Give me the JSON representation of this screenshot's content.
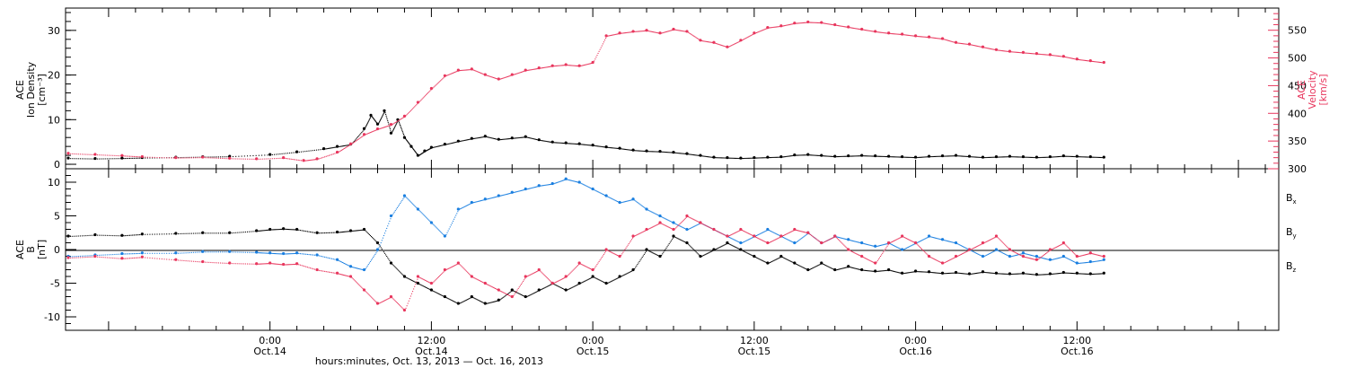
{
  "chart_data": [
    {
      "type": "scatter",
      "panel": "top",
      "ylabel_left": [
        "ACE",
        "Ion Density",
        "[cm⁻³]"
      ],
      "ylabel_right": [
        "ACE",
        "Velocity",
        "[km/s]"
      ],
      "left_axis": {
        "ylim": [
          -1,
          35
        ],
        "ticks": [
          0,
          10,
          20,
          30
        ]
      },
      "right_axis": {
        "ylim": [
          300,
          590
        ],
        "ticks": [
          300,
          350,
          400,
          450,
          500,
          550
        ],
        "color": "#e8365d"
      },
      "series": [
        {
          "axis": "left",
          "color": "#000000",
          "x_hours": [
            -15,
            -13,
            -11,
            -9.5,
            -7,
            -5,
            -3,
            0,
            2,
            4,
            5,
            6,
            7,
            7.5,
            8,
            8.5,
            9,
            9.5,
            10,
            10.5,
            11,
            11.5,
            12,
            13,
            14,
            15,
            16,
            17,
            18,
            19,
            20,
            21,
            22,
            23,
            24,
            25,
            26,
            27,
            28,
            29,
            30,
            31,
            32,
            33,
            34,
            35,
            36,
            37,
            38,
            39,
            40,
            41,
            42,
            43,
            44,
            45,
            46,
            47,
            48,
            49,
            50,
            51,
            52,
            53,
            54,
            55,
            56,
            57,
            58,
            59,
            60,
            61,
            62
          ],
          "y": [
            1.4,
            1.3,
            1.4,
            1.5,
            1.6,
            1.7,
            1.8,
            2.2,
            2.8,
            3.5,
            4.0,
            4.5,
            8,
            11,
            9,
            12,
            7,
            10,
            6,
            4,
            2,
            3,
            3.8,
            4.5,
            5.2,
            5.8,
            6.3,
            5.6,
            5.9,
            6.2,
            5.5,
            5.0,
            4.8,
            4.6,
            4.3,
            3.9,
            3.6,
            3.2,
            3.0,
            2.9,
            2.7,
            2.4,
            2.0,
            1.6,
            1.5,
            1.4,
            1.5,
            1.6,
            1.7,
            2.1,
            2.2,
            2.0,
            1.8,
            1.9,
            2.0,
            1.9,
            1.8,
            1.7,
            1.6,
            1.8,
            1.9,
            2.0,
            1.8,
            1.6,
            1.7,
            1.8,
            1.7,
            1.6,
            1.7,
            1.9,
            1.8,
            1.7,
            1.6
          ]
        },
        {
          "axis": "right",
          "color": "#e8365d",
          "x_hours": [
            -15,
            -13,
            -11,
            -9.5,
            -7,
            -5,
            -3,
            -1,
            1,
            2.5,
            3.5,
            5,
            6,
            7,
            8,
            9,
            10,
            11,
            12,
            13,
            14,
            15,
            16,
            17,
            18,
            19,
            20,
            21,
            22,
            23,
            24,
            25,
            26,
            27,
            28,
            29,
            30,
            31,
            32,
            33,
            34,
            35,
            36,
            37,
            38,
            39,
            40,
            41,
            42,
            43,
            44,
            45,
            46,
            47,
            48,
            49,
            50,
            51,
            52,
            53,
            54,
            55,
            56,
            57,
            58,
            59,
            60,
            61,
            62
          ],
          "y": [
            328,
            326,
            324,
            322,
            320,
            321,
            319,
            318,
            320,
            315,
            318,
            330,
            345,
            362,
            372,
            380,
            395,
            420,
            445,
            468,
            478,
            480,
            470,
            462,
            470,
            478,
            482,
            486,
            488,
            486,
            492,
            540,
            545,
            548,
            550,
            545,
            552,
            548,
            532,
            528,
            520,
            532,
            545,
            555,
            558,
            563,
            565,
            564,
            560,
            556,
            552,
            548,
            545,
            543,
            540,
            538,
            535,
            528,
            525,
            520,
            515,
            512,
            510,
            508,
            506,
            503,
            498,
            495,
            492
          ]
        }
      ]
    },
    {
      "type": "scatter",
      "panel": "bottom",
      "ylabel_left": [
        "ACE",
        "B",
        "[nT]"
      ],
      "ylim": [
        -12,
        12
      ],
      "ticks": [
        -10,
        -5,
        0,
        5,
        10
      ],
      "series": [
        {
          "name": "B",
          "sub": "x",
          "color": "#000000",
          "x_hours": [
            -15,
            -13,
            -11,
            -9.5,
            -7,
            -5,
            -3,
            -1,
            0,
            1,
            2,
            3.5,
            5,
            6,
            7,
            8,
            9,
            10,
            11,
            12,
            13,
            14,
            15,
            16,
            17,
            18,
            19,
            20,
            21,
            22,
            23,
            24,
            25,
            26,
            27,
            28,
            29,
            30,
            31,
            32,
            33,
            34,
            35,
            36,
            37,
            38,
            39,
            40,
            41,
            42,
            43,
            44,
            45,
            46,
            47,
            48,
            49,
            50,
            51,
            52,
            53,
            54,
            55,
            56,
            57,
            58,
            59,
            60,
            61,
            62
          ],
          "y": [
            2.0,
            2.2,
            2.1,
            2.3,
            2.4,
            2.5,
            2.5,
            2.8,
            3.0,
            3.1,
            3.0,
            2.5,
            2.6,
            2.8,
            3.0,
            1.0,
            -2,
            -4,
            -5,
            -6,
            -7,
            -8,
            -7,
            -8,
            -7.5,
            -6,
            -7,
            -6,
            -5,
            -6,
            -5,
            -4,
            -5,
            -4,
            -3,
            0,
            -1,
            2,
            1,
            -1,
            0,
            1,
            0,
            -1,
            -2,
            -1,
            -2,
            -3,
            -2,
            -3,
            -2.5,
            -3,
            -3.2,
            -3,
            -3.5,
            -3.2,
            -3.3,
            -3.5,
            -3.4,
            -3.6,
            -3.3,
            -3.5,
            -3.6,
            -3.5,
            -3.7,
            -3.6,
            -3.4,
            -3.5,
            -3.6,
            -3.5
          ]
        },
        {
          "name": "B",
          "sub": "y",
          "color": "#1a7fe0",
          "x_hours": [
            -15,
            -13,
            -11,
            -9.5,
            -7,
            -5,
            -3,
            -1,
            0,
            1,
            2,
            3.5,
            5,
            6,
            7,
            8,
            9,
            10,
            11,
            12,
            13,
            14,
            15,
            16,
            17,
            18,
            19,
            20,
            21,
            22,
            23,
            24,
            25,
            26,
            27,
            28,
            29,
            30,
            31,
            32,
            33,
            34,
            35,
            36,
            37,
            38,
            39,
            40,
            41,
            42,
            43,
            44,
            45,
            46,
            47,
            48,
            49,
            50,
            51,
            52,
            53,
            54,
            55,
            56,
            57,
            58,
            59,
            60,
            61,
            62
          ],
          "y": [
            -1.0,
            -0.8,
            -0.6,
            -0.5,
            -0.5,
            -0.3,
            -0.3,
            -0.4,
            -0.5,
            -0.6,
            -0.5,
            -0.8,
            -1.5,
            -2.5,
            -3,
            0,
            5,
            8,
            6,
            4,
            2,
            6,
            7,
            7.5,
            8,
            8.5,
            9,
            9.5,
            9.8,
            10.5,
            10,
            9,
            8,
            7,
            7.5,
            6,
            5,
            4,
            3,
            4,
            3,
            2,
            1,
            2,
            3,
            2,
            1,
            2.5,
            1,
            2,
            1.5,
            1,
            0.5,
            1,
            0,
            1,
            2,
            1.5,
            1,
            0,
            -1,
            0,
            -1,
            -0.5,
            -1,
            -1.5,
            -1,
            -2,
            -1.8,
            -1.5
          ]
        },
        {
          "name": "B",
          "sub": "z",
          "color": "#e8365d",
          "x_hours": [
            -15,
            -13,
            -11,
            -9.5,
            -7,
            -5,
            -3,
            -1,
            0,
            1,
            2,
            3.5,
            5,
            6,
            7,
            8,
            9,
            10,
            11,
            12,
            13,
            14,
            15,
            16,
            17,
            18,
            19,
            20,
            21,
            22,
            23,
            24,
            25,
            26,
            27,
            28,
            29,
            30,
            31,
            32,
            33,
            34,
            35,
            36,
            37,
            38,
            39,
            40,
            41,
            42,
            43,
            44,
            45,
            46,
            47,
            48,
            49,
            50,
            51,
            52,
            53,
            54,
            55,
            56,
            57,
            58,
            59,
            60,
            61,
            62
          ],
          "y": [
            -1.2,
            -1.0,
            -1.3,
            -1.1,
            -1.5,
            -1.8,
            -2.0,
            -2.1,
            -2.0,
            -2.2,
            -2.1,
            -3.0,
            -3.5,
            -4,
            -6,
            -8,
            -7,
            -9,
            -4,
            -5,
            -3,
            -2,
            -4,
            -5,
            -6,
            -7,
            -4,
            -3,
            -5,
            -4,
            -2,
            -3,
            0,
            -1,
            2,
            3,
            4,
            3,
            5,
            4,
            3,
            2,
            3,
            2,
            1,
            2,
            3,
            2.5,
            1,
            2,
            0,
            -1,
            -2,
            1,
            2,
            1,
            -1,
            -2,
            -1,
            0,
            1,
            2,
            0,
            -1,
            -1.5,
            0,
            1,
            -1,
            -0.5,
            -1
          ]
        }
      ],
      "legend": [
        "B",
        "B",
        "B"
      ],
      "legend_subs": [
        "x",
        "y",
        "z"
      ]
    }
  ],
  "xaxis": {
    "tick_labels": [
      {
        "time": "0:00",
        "date": "Oct.14"
      },
      {
        "time": "12:00",
        "date": "Oct.14"
      },
      {
        "time": "0:00",
        "date": "Oct.15"
      },
      {
        "time": "12:00",
        "date": "Oct.15"
      },
      {
        "time": "0:00",
        "date": "Oct.16"
      },
      {
        "time": "12:00",
        "date": "Oct.16"
      }
    ],
    "tick_hours": [
      0,
      12,
      24,
      36,
      48,
      60
    ],
    "range_hours": [
      -15.2,
      75
    ],
    "title": "hours:minutes, Oct. 13, 2013 — Oct. 16, 2013"
  }
}
